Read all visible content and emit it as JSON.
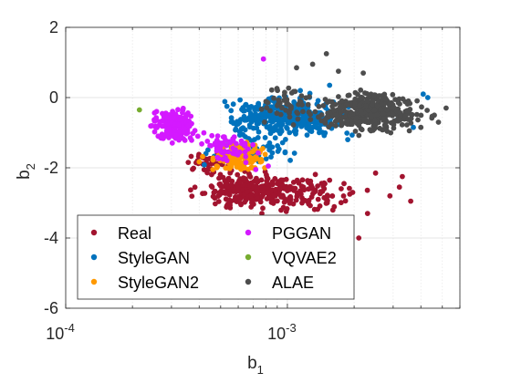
{
  "chart_data": {
    "type": "scatter",
    "x_scale": "log",
    "xlim": [
      0.0001,
      0.006
    ],
    "ylim": [
      -6,
      2
    ],
    "grid": true,
    "xlabel": {
      "base": "b",
      "sub": "1"
    },
    "ylabel": {
      "base": "b",
      "sub": "2"
    },
    "x_ticks": [
      {
        "value": 0.0001,
        "base": "10",
        "exp": "-4"
      },
      {
        "value": 0.001,
        "base": "10",
        "exp": "-3"
      }
    ],
    "y_ticks": [
      {
        "value": 2,
        "label": "2"
      },
      {
        "value": 0,
        "label": "0"
      },
      {
        "value": -2,
        "label": "-2"
      },
      {
        "value": -4,
        "label": "-4"
      },
      {
        "value": -6,
        "label": "-6"
      }
    ],
    "legend_position": "bottom-left",
    "series": [
      {
        "name": "Real",
        "color": "#A2142F",
        "clusters": [
          {
            "n": 260,
            "x": [
              0.00035,
              0.0013
            ],
            "y": [
              -3.3,
              -1.9
            ]
          },
          {
            "n": 90,
            "x": [
              0.0006,
              0.0026
            ],
            "y": [
              -3.5,
              -2.1
            ]
          },
          {
            "n": 40,
            "x": [
              0.00033,
              0.0006
            ],
            "y": [
              -2.2,
              -1.4
            ]
          }
        ],
        "points": [
          [
            0.0021,
            -4.0
          ],
          [
            0.0036,
            -2.95
          ],
          [
            0.0032,
            -2.55
          ],
          [
            0.0025,
            -2.15
          ],
          [
            0.0017,
            -3.75
          ],
          [
            0.0029,
            -2.8
          ],
          [
            0.0033,
            -2.25
          ],
          [
            0.0023,
            -3.3
          ],
          [
            0.0018,
            -2.45
          ]
        ]
      },
      {
        "name": "StyleGAN",
        "color": "#0072BD",
        "clusters": [
          {
            "n": 340,
            "x": [
              0.00045,
              0.0022
            ],
            "y": [
              -1.3,
              0.2
            ]
          },
          {
            "n": 80,
            "x": [
              0.0004,
              0.0012
            ],
            "y": [
              -2.0,
              -1.0
            ]
          }
        ],
        "points": [
          [
            0.0043,
            0.0
          ],
          [
            0.0037,
            -0.85
          ],
          [
            0.0041,
            0.1
          ],
          [
            0.0031,
            -0.65
          ],
          [
            0.00155,
            0.35
          ]
        ]
      },
      {
        "name": "StyleGAN2",
        "color": "#FF9900",
        "clusters": [
          {
            "n": 150,
            "x": [
              0.0004,
              0.0009
            ],
            "y": [
              -2.2,
              -1.2
            ]
          }
        ],
        "points": []
      },
      {
        "name": "PGGAN",
        "color": "#D419FF",
        "clusters": [
          {
            "n": 200,
            "x": [
              0.00023,
              0.00042
            ],
            "y": [
              -1.4,
              -0.2
            ]
          },
          {
            "n": 60,
            "x": [
              0.00038,
              0.00075
            ],
            "y": [
              -1.9,
              -0.9
            ]
          }
        ],
        "points": [
          [
            0.00078,
            1.1
          ],
          [
            0.00082,
            -1.95
          ],
          [
            0.00072,
            -2.05
          ],
          [
            0.00065,
            -1.85
          ]
        ]
      },
      {
        "name": "VQVAE2",
        "color": "#77AC30",
        "clusters": [],
        "points": [
          [
            0.000215,
            -0.35
          ]
        ]
      },
      {
        "name": "ALAE",
        "color": "#4D4D4D",
        "clusters": [
          {
            "n": 400,
            "x": [
              0.0012,
              0.0045
            ],
            "y": [
              -1.1,
              0.3
            ]
          },
          {
            "n": 50,
            "x": [
              0.0007,
              0.0014
            ],
            "y": [
              -0.9,
              0.6
            ]
          }
        ],
        "points": [
          [
            0.0015,
            1.25
          ],
          [
            0.0022,
            0.7
          ],
          [
            0.0052,
            -0.3
          ],
          [
            0.0048,
            -0.7
          ],
          [
            0.0013,
            0.95
          ],
          [
            0.0011,
            0.85
          ],
          [
            0.0017,
            0.75
          ],
          [
            0.0046,
            -0.5
          ]
        ]
      }
    ]
  }
}
